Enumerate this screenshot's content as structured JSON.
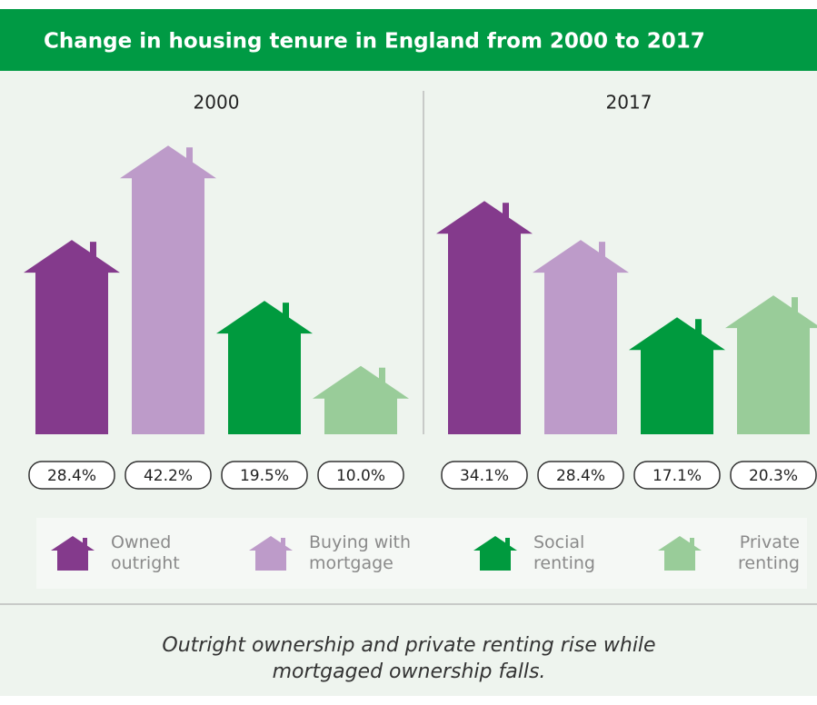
{
  "header": {
    "title": "Change in housing tenure in England from 2000 to 2017"
  },
  "chart_data": {
    "type": "bar",
    "categories": [
      "2000",
      "2017"
    ],
    "series": [
      {
        "name": "Owned outright",
        "color": "#843a8c",
        "values": [
          28.4,
          34.1
        ],
        "value_labels": [
          "28.4%",
          "34.1%"
        ]
      },
      {
        "name": "Buying with mortgage",
        "color": "#bd9bc9",
        "values": [
          42.2,
          28.4
        ],
        "value_labels": [
          "42.2%",
          "28.4%"
        ]
      },
      {
        "name": "Social renting",
        "color": "#009a3e",
        "values": [
          19.5,
          17.1
        ],
        "value_labels": [
          "19.5%",
          "17.1%"
        ]
      },
      {
        "name": "Private renting",
        "color": "#99cc99",
        "values": [
          10.0,
          20.3
        ],
        "value_labels": [
          "10.0%",
          "20.3%"
        ]
      }
    ]
  },
  "caption": "Outright ownership and private renting rise while mortgaged ownership falls."
}
